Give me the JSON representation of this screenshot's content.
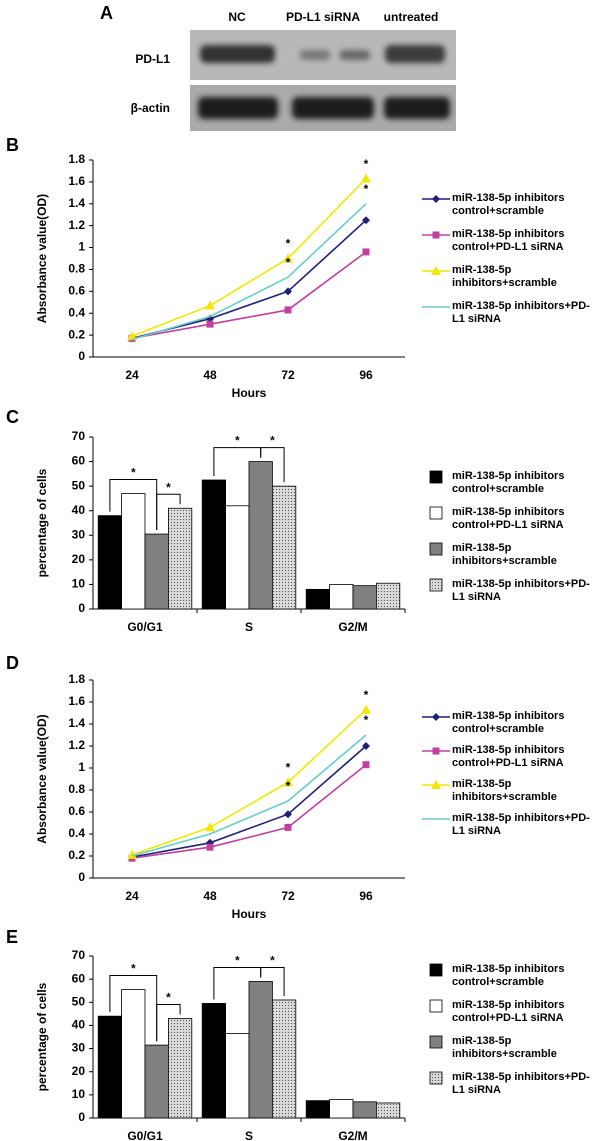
{
  "blot": {
    "label": "A",
    "lanes": [
      "NC",
      "PD-L1 siRNA",
      "untreated"
    ],
    "rows": [
      "PD-L1",
      "β-actin"
    ]
  },
  "chart_data": [
    {
      "type": "line",
      "label": "B",
      "y_label": "Absorbance value(OD)",
      "x_label": "Hours",
      "categories": [
        "24",
        "48",
        "72",
        "96"
      ],
      "ylim": [
        0,
        1.8
      ],
      "yticks": [
        0,
        0.2,
        0.4,
        0.6,
        0.8,
        1,
        1.2,
        1.4,
        1.6,
        1.8
      ],
      "series": [
        {
          "name": "miR-138-5p inhibitors control+scramble",
          "color": "#1f1f7a",
          "marker": "diamond",
          "values": [
            0.17,
            0.35,
            0.6,
            1.25
          ]
        },
        {
          "name": "miR-138-5p inhibitors control+PD-L1 siRNA",
          "color": "#c040a0",
          "marker": "square",
          "values": [
            0.17,
            0.3,
            0.43,
            0.96
          ]
        },
        {
          "name": "miR-138-5p inhibitors+scramble",
          "color": "#f0e800",
          "marker": "triangle",
          "values": [
            0.19,
            0.47,
            0.9,
            1.63
          ]
        },
        {
          "name": "miR-138-5p inhibitors+PD-L1 siRNA",
          "color": "#66cccc",
          "marker": "none",
          "values": [
            0.16,
            0.37,
            0.73,
            1.4
          ]
        }
      ],
      "annotations": [
        {
          "text": "*",
          "category": "72",
          "series": "miR-138-5p inhibitors+scramble"
        },
        {
          "text": "*",
          "category": "72",
          "series": "miR-138-5p inhibitors+PD-L1 siRNA"
        },
        {
          "text": "*",
          "category": "96",
          "series": "miR-138-5p inhibitors+scramble"
        },
        {
          "text": "*",
          "category": "96",
          "series": "miR-138-5p inhibitors+PD-L1 siRNA"
        }
      ]
    },
    {
      "type": "bar",
      "label": "C",
      "y_label": "percentage of cells",
      "categories": [
        "G0/G1",
        "S",
        "G2/M"
      ],
      "ylim": [
        0,
        70
      ],
      "yticks": [
        0,
        10,
        20,
        30,
        40,
        50,
        60,
        70
      ],
      "series": [
        {
          "name": "miR-138-5p inhibitors control+scramble",
          "color": "#000000",
          "values": [
            38,
            52.5,
            8
          ]
        },
        {
          "name": "miR-138-5p inhibitors control+PD-L1 siRNA",
          "color": "#ffffff",
          "values": [
            47,
            42,
            10
          ]
        },
        {
          "name": "miR-138-5p inhibitors+scramble",
          "color": "#808080",
          "values": [
            30.5,
            60,
            9.5
          ]
        },
        {
          "name": "miR-138-5p inhibitors+PD-L1 siRNA",
          "color": "#c8c8c8",
          "pattern": "dots",
          "values": [
            41,
            50,
            10.5
          ]
        }
      ],
      "annotations": [
        {
          "text": "*",
          "category": "G0/G1",
          "from": "miR-138-5p inhibitors control+scramble",
          "to": "miR-138-5p inhibitors+scramble"
        },
        {
          "text": "*",
          "category": "G0/G1",
          "from": "miR-138-5p inhibitors+scramble",
          "to": "miR-138-5p inhibitors+PD-L1 siRNA"
        },
        {
          "text": "*",
          "category": "S",
          "from": "miR-138-5p inhibitors control+scramble",
          "to": "miR-138-5p inhibitors+scramble"
        },
        {
          "text": "*",
          "category": "S",
          "from": "miR-138-5p inhibitors+scramble",
          "to": "miR-138-5p inhibitors+PD-L1 siRNA"
        }
      ]
    },
    {
      "type": "line",
      "label": "D",
      "y_label": "Absorbance value(OD)",
      "x_label": "Hours",
      "categories": [
        "24",
        "48",
        "72",
        "96"
      ],
      "ylim": [
        0,
        1.8
      ],
      "yticks": [
        0,
        0.2,
        0.4,
        0.6,
        0.8,
        1,
        1.2,
        1.4,
        1.6,
        1.8
      ],
      "series": [
        {
          "name": "miR-138-5p inhibitors control+scramble",
          "color": "#1f1f7a",
          "marker": "diamond",
          "values": [
            0.19,
            0.32,
            0.58,
            1.2
          ]
        },
        {
          "name": "miR-138-5p inhibitors control+PD-L1 siRNA",
          "color": "#c040a0",
          "marker": "square",
          "values": [
            0.18,
            0.28,
            0.46,
            1.03
          ]
        },
        {
          "name": "miR-138-5p inhibitors+scramble",
          "color": "#f0e800",
          "marker": "triangle",
          "values": [
            0.21,
            0.46,
            0.87,
            1.53
          ]
        },
        {
          "name": "miR-138-5p inhibitors+PD-L1 siRNA",
          "color": "#66cccc",
          "marker": "none",
          "values": [
            0.2,
            0.4,
            0.7,
            1.3
          ]
        }
      ],
      "annotations": [
        {
          "text": "*",
          "category": "72",
          "series": "miR-138-5p inhibitors+scramble"
        },
        {
          "text": "*",
          "category": "72",
          "series": "miR-138-5p inhibitors+PD-L1 siRNA"
        },
        {
          "text": "*",
          "category": "96",
          "series": "miR-138-5p inhibitors+scramble"
        },
        {
          "text": "*",
          "category": "96",
          "series": "miR-138-5p inhibitors+PD-L1 siRNA"
        }
      ]
    },
    {
      "type": "bar",
      "label": "E",
      "y_label": "percentage of cells",
      "categories": [
        "G0/G1",
        "S",
        "G2/M"
      ],
      "ylim": [
        0,
        70
      ],
      "yticks": [
        0,
        10,
        20,
        30,
        40,
        50,
        60,
        70
      ],
      "series": [
        {
          "name": "miR-138-5p inhibitors control+scramble",
          "color": "#000000",
          "values": [
            44,
            49.5,
            7.5
          ]
        },
        {
          "name": "miR-138-5p inhibitors control+PD-L1 siRNA",
          "color": "#ffffff",
          "values": [
            55.5,
            36.5,
            8
          ]
        },
        {
          "name": "miR-138-5p inhibitors+scramble",
          "color": "#808080",
          "values": [
            31.5,
            59,
            7
          ]
        },
        {
          "name": "miR-138-5p inhibitors+PD-L1 siRNA",
          "color": "#c8c8c8",
          "pattern": "dots",
          "values": [
            43,
            51,
            6.5
          ]
        }
      ],
      "annotations": [
        {
          "text": "*",
          "category": "G0/G1",
          "from": "miR-138-5p inhibitors control+scramble",
          "to": "miR-138-5p inhibitors+scramble"
        },
        {
          "text": "*",
          "category": "G0/G1",
          "from": "miR-138-5p inhibitors+scramble",
          "to": "miR-138-5p inhibitors+PD-L1 siRNA"
        },
        {
          "text": "*",
          "category": "S",
          "from": "miR-138-5p inhibitors control+scramble",
          "to": "miR-138-5p inhibitors+scramble"
        },
        {
          "text": "*",
          "category": "S",
          "from": "miR-138-5p inhibitors+scramble",
          "to": "miR-138-5p inhibitors+PD-L1 siRNA"
        }
      ]
    }
  ]
}
